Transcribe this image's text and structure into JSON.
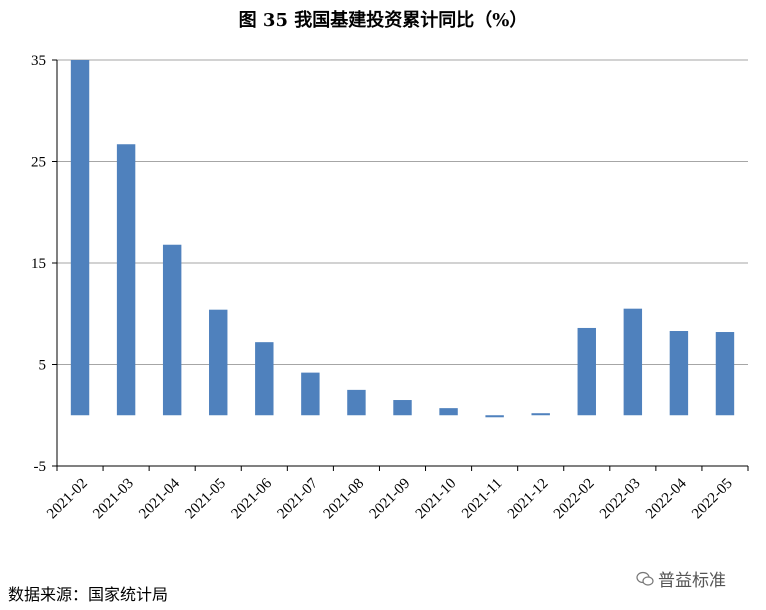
{
  "title": "图 35  我国基建投资累计同比（%）",
  "source": "数据来源：国家统计局",
  "watermark": {
    "text": "普益标准",
    "icon": "wechat-icon"
  },
  "colors": {
    "bar": "#4f81bd",
    "grid": "#a6a6a6",
    "axis": "#000000"
  },
  "chart_data": {
    "type": "bar",
    "title": "图 35  我国基建投资累计同比（%）",
    "xlabel": "",
    "ylabel": "",
    "categories": [
      "2021-02",
      "2021-03",
      "2021-04",
      "2021-05",
      "2021-06",
      "2021-07",
      "2021-08",
      "2021-09",
      "2021-10",
      "2021-11",
      "2021-12",
      "2022-02",
      "2022-03",
      "2022-04",
      "2022-05"
    ],
    "values": [
      35.0,
      26.7,
      16.8,
      10.4,
      7.2,
      4.2,
      2.5,
      1.5,
      0.7,
      -0.2,
      0.2,
      8.6,
      10.5,
      8.3,
      8.2
    ],
    "ylim": [
      -5,
      35
    ],
    "yticks": [
      -5,
      5,
      15,
      25,
      35
    ],
    "grid": true,
    "legend": "none"
  }
}
